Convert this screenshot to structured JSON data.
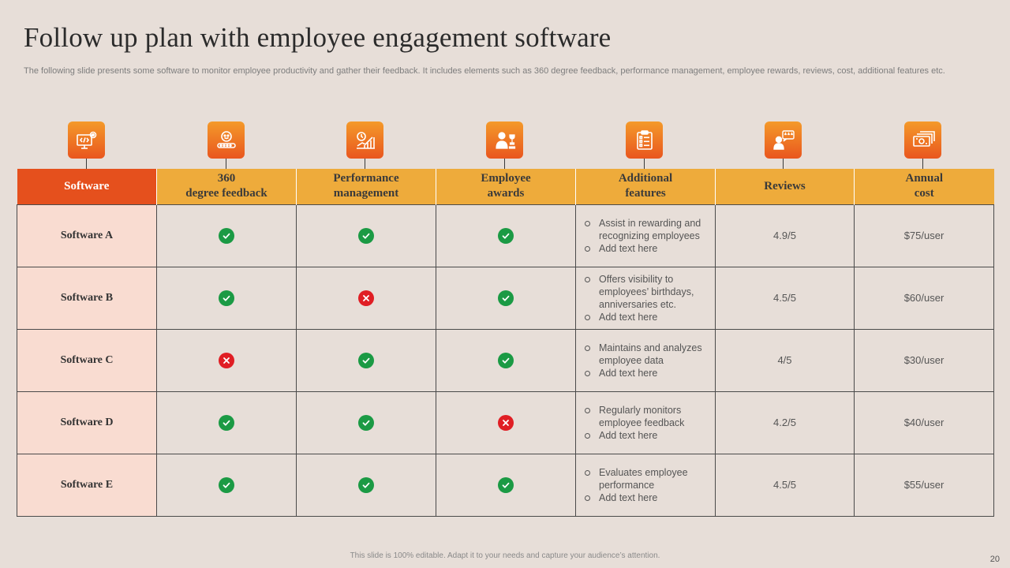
{
  "title": "Follow up plan with employee engagement software",
  "subtitle": "The following slide presents some software to monitor employee productivity and gather their feedback. It includes elements such as 360 degree feedback, performance management, employee rewards, reviews, cost, additional features etc.",
  "icons": [
    "software-icon",
    "feedback-icon",
    "performance-icon",
    "awards-icon",
    "features-icon",
    "reviews-icon",
    "cost-icon"
  ],
  "headers": {
    "software": "Software",
    "feedback_1": "360",
    "feedback_2": "degree feedback",
    "performance_1": "Performance",
    "performance_2": "management",
    "awards_1": "Employee",
    "awards_2": "awards",
    "features_1": "Additional",
    "features_2": "features",
    "reviews": "Reviews",
    "cost_1": "Annual",
    "cost_2": "cost"
  },
  "rows": [
    {
      "name": "Software A",
      "feedback": true,
      "performance": true,
      "awards": true,
      "features": [
        "Assist in rewarding and recognizing employees",
        "Add text here"
      ],
      "review": "4.9/5",
      "cost": "$75/user"
    },
    {
      "name": "Software B",
      "feedback": true,
      "performance": false,
      "awards": true,
      "features": [
        "Offers visibility to employees’ birthdays, anniversaries etc.",
        "Add text here"
      ],
      "review": "4.5/5",
      "cost": "$60/user"
    },
    {
      "name": "Software C",
      "feedback": false,
      "performance": true,
      "awards": true,
      "features": [
        "Maintains and analyzes employee data",
        "Add text here"
      ],
      "review": "4/5",
      "cost": "$30/user"
    },
    {
      "name": "Software D",
      "feedback": true,
      "performance": true,
      "awards": false,
      "features": [
        "Regularly monitors employee feedback",
        "Add text here"
      ],
      "review": "4.2/5",
      "cost": "$40/user"
    },
    {
      "name": "Software E",
      "feedback": true,
      "performance": true,
      "awards": true,
      "features": [
        "Evaluates employee performance",
        "Add text here"
      ],
      "review": "4.5/5",
      "cost": "$55/user"
    }
  ],
  "footer": "This slide is 100% editable. Adapt it to your needs and capture your audience’s attention.",
  "page_number": "20",
  "colors": {
    "header_orange": "#eeab3b",
    "header_red": "#e5501d",
    "check_green": "#1b9a44",
    "cross_red": "#e01e24",
    "name_cell": "#f9dcd1"
  }
}
